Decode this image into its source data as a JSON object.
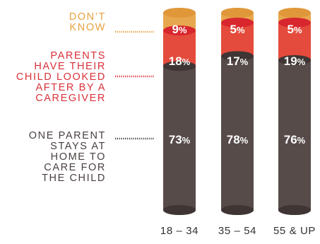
{
  "chart_data": {
    "type": "bar",
    "stacked": true,
    "categories": [
      "18 – 34",
      "35 – 54",
      "55 & UP"
    ],
    "series": [
      {
        "name": "ONE PARENT STAYS AT HOME TO CARE FOR THE CHILD",
        "values": [
          73,
          78,
          76
        ],
        "color": "#574b4a"
      },
      {
        "name": "PARENTS HAVE THEIR CHILD LOOKED AFTER BY A CAREGIVER",
        "values": [
          18,
          17,
          19
        ],
        "color": "#e44b3c"
      },
      {
        "name": "DON’T KNOW",
        "values": [
          9,
          5,
          5
        ],
        "color": "#e7a74e"
      }
    ],
    "value_suffix": "%",
    "ylim": [
      0,
      100
    ],
    "grid": false,
    "legend_position": "left",
    "title": "",
    "xlabel": "",
    "ylabel": ""
  },
  "legend": {
    "dont_know": "DON’T\nKNOW",
    "caregiver": "PARENTS\nHAVE THEIR\nCHILD LOOKED\nAFTER BY A\nCAREGIVER",
    "one_parent": "ONE PARENT\nSTAYS AT\nHOME TO\nCARE FOR\nTHE CHILD"
  },
  "colors": {
    "top_dark": "#e0973a",
    "caregiver_dark": "#d8262e",
    "base_dark": "#3f3534",
    "legend_dont_know": "#e7a13f",
    "legend_caregiver": "#d9313a",
    "legend_one_parent": "#4a4040",
    "category_text": "#333333"
  }
}
